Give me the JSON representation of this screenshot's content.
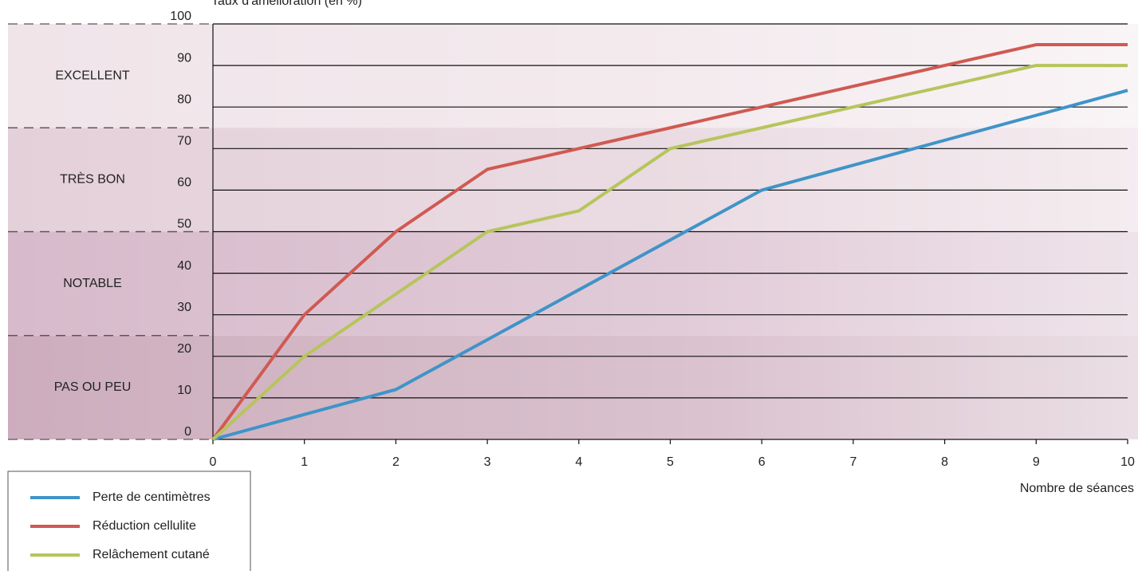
{
  "chart_data": {
    "type": "line",
    "y_label": "Taux d'amélioration (en %)",
    "x_label": "Nombre de séances",
    "x": [
      0,
      1,
      2,
      3,
      4,
      5,
      6,
      7,
      8,
      9,
      10
    ],
    "xlim": [
      0,
      10
    ],
    "xticks": [
      0,
      1,
      2,
      3,
      4,
      5,
      6,
      7,
      8,
      9,
      10
    ],
    "ylim": [
      0,
      100
    ],
    "yticks": [
      0,
      10,
      20,
      30,
      40,
      50,
      60,
      70,
      80,
      90,
      100
    ],
    "grid": true,
    "legend": "lower left",
    "zones": [
      {
        "label": "EXCELLENT",
        "range": [
          75,
          100
        ],
        "color": "#f0e4e9"
      },
      {
        "label": "TRÈS BON",
        "range": [
          50,
          75
        ],
        "color": "#e4d0d9"
      },
      {
        "label": "NOTABLE",
        "range": [
          25,
          50
        ],
        "color": "#d7bacb"
      },
      {
        "label": "PAS OU PEU",
        "range": [
          0,
          25
        ],
        "color": "#cdadbd"
      }
    ],
    "series": [
      {
        "name": "Perte de centimètres",
        "color": "#3f94c8",
        "values": [
          0,
          6,
          12,
          24,
          36,
          48,
          60,
          66,
          72,
          78,
          84
        ]
      },
      {
        "name": "Réduction cellulite",
        "color": "#cf5a52",
        "values": [
          0,
          30,
          50,
          65,
          70,
          75,
          80,
          85,
          90,
          95,
          95
        ]
      },
      {
        "name": "Relâchement cutané",
        "color": "#b6c55c",
        "values": [
          0,
          20,
          35,
          50,
          55,
          70,
          75,
          80,
          85,
          90,
          90
        ]
      }
    ]
  }
}
